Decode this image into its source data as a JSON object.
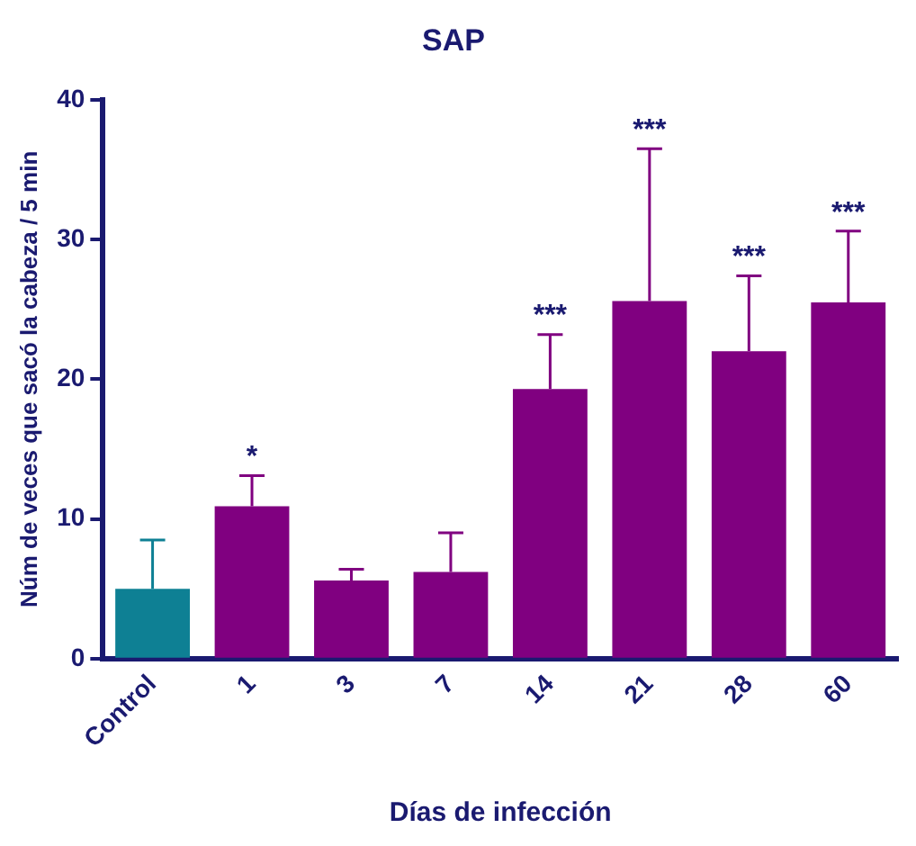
{
  "chart_data": {
    "type": "bar",
    "title": "SAP",
    "xlabel": "Días de infección",
    "ylabel": "Núm de veces que sacó la cabeza / 5 min",
    "categories": [
      "Control",
      "1",
      "3",
      "7",
      "14",
      "21",
      "28",
      "60"
    ],
    "values": [
      5.0,
      10.9,
      5.6,
      6.2,
      19.3,
      25.6,
      22.0,
      25.5
    ],
    "colors": [
      "#0e8094",
      "#800080",
      "#800080",
      "#800080",
      "#800080",
      "#800080",
      "#800080",
      "#800080"
    ],
    "errors": [
      [
        5.0,
        8.5
      ],
      [
        10.9,
        13.1
      ],
      [
        5.6,
        6.4
      ],
      [
        6.2,
        9.0
      ],
      [
        19.3,
        23.2
      ],
      [
        25.6,
        36.5
      ],
      [
        22.0,
        27.4
      ],
      [
        25.5,
        30.6
      ]
    ],
    "ylim": [
      0,
      40
    ],
    "yticks": [
      0,
      10,
      20,
      30,
      40
    ],
    "grid": false,
    "legend": false,
    "annotations": [
      {
        "text": "*",
        "x": "1",
        "y": 13.1
      },
      {
        "text": "***",
        "x": "14",
        "y": 23.2
      },
      {
        "text": "***",
        "x": "21",
        "y": 36.5
      },
      {
        "text": "***",
        "x": "28",
        "y": 27.4
      },
      {
        "text": "***",
        "x": "60",
        "y": 30.6
      }
    ]
  }
}
